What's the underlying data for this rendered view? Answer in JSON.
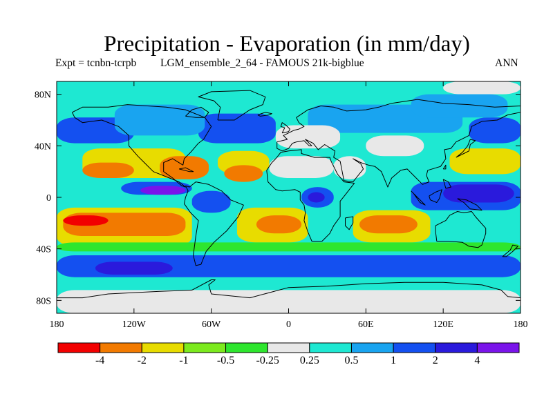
{
  "title": "Precipitation - Evaporation (in mm/day)",
  "experiment_label": "Expt = tcnbn-tcrpb",
  "experiment_name": "LGM_ensemble_2_64 - FAMOUS 21k-bigblue",
  "season": "ANN",
  "map": {
    "lon_range": [
      -180,
      180
    ],
    "lat_range": [
      -90,
      90
    ],
    "lat_ticks": [
      {
        "value": 80,
        "label": "80N"
      },
      {
        "value": 40,
        "label": "40N"
      },
      {
        "value": 0,
        "label": "0"
      },
      {
        "value": -40,
        "label": "40S"
      },
      {
        "value": -80,
        "label": "80S"
      }
    ],
    "lon_ticks": [
      {
        "value": -180,
        "label": "180"
      },
      {
        "value": -120,
        "label": "120W"
      },
      {
        "value": -60,
        "label": "60W"
      },
      {
        "value": 0,
        "label": "0"
      },
      {
        "value": 60,
        "label": "60E"
      },
      {
        "value": 120,
        "label": "120E"
      },
      {
        "value": 180,
        "label": "180"
      }
    ]
  },
  "colorbar": {
    "colors": [
      "#f20000",
      "#f27a00",
      "#e8dc00",
      "#7cea1e",
      "#2ee62e",
      "#e8e8e8",
      "#1ee8d2",
      "#19a4f0",
      "#1450f0",
      "#2a1adc",
      "#7a14ea"
    ],
    "labels": [
      "-4",
      "-2",
      "-1",
      "-0.5",
      "-0.25",
      "0.25",
      "0.5",
      "1",
      "2",
      "4"
    ]
  },
  "base_color": "#1ee8d2",
  "regions": [
    {
      "name": "arctic-white",
      "color": "#e8e8e8",
      "lon": [
        120,
        180
      ],
      "lat": [
        80,
        90
      ]
    },
    {
      "name": "north-atlantic-blue",
      "color": "#1450f0",
      "lon": [
        -70,
        -10
      ],
      "lat": [
        42,
        65
      ]
    },
    {
      "name": "north-pacific-blue",
      "color": "#1450f0",
      "lon": [
        -180,
        -120
      ],
      "lat": [
        42,
        62
      ]
    },
    {
      "name": "north-pacific-blue-west",
      "color": "#1450f0",
      "lon": [
        140,
        180
      ],
      "lat": [
        42,
        62
      ]
    },
    {
      "name": "canada-lightblue",
      "color": "#19a4f0",
      "lon": [
        -135,
        -65
      ],
      "lat": [
        48,
        72
      ]
    },
    {
      "name": "eurasia-lightblue",
      "color": "#19a4f0",
      "lon": [
        15,
        135
      ],
      "lat": [
        50,
        72
      ]
    },
    {
      "name": "siberia-lightblue",
      "color": "#19a4f0",
      "lon": [
        95,
        170
      ],
      "lat": [
        62,
        80
      ]
    },
    {
      "name": "sahara-white",
      "color": "#e8e8e8",
      "lon": [
        -15,
        35
      ],
      "lat": [
        15,
        32
      ]
    },
    {
      "name": "arabia-white",
      "color": "#e8e8e8",
      "lon": [
        35,
        60
      ],
      "lat": [
        14,
        32
      ]
    },
    {
      "name": "central-asia-white",
      "color": "#e8e8e8",
      "lon": [
        60,
        105
      ],
      "lat": [
        32,
        48
      ]
    },
    {
      "name": "europe-white",
      "color": "#e8e8e8",
      "lon": [
        -10,
        40
      ],
      "lat": [
        38,
        56
      ]
    },
    {
      "name": "na-band-yellow",
      "color": "#e8dc00",
      "lon": [
        -160,
        -80
      ],
      "lat": [
        15,
        38
      ]
    },
    {
      "name": "atlantic-band-yellow",
      "color": "#e8dc00",
      "lon": [
        -55,
        -15
      ],
      "lat": [
        18,
        36
      ]
    },
    {
      "name": "wpac-band-yellow",
      "color": "#e8dc00",
      "lon": [
        125,
        180
      ],
      "lat": [
        18,
        38
      ]
    },
    {
      "name": "mexico-orange",
      "color": "#f27a00",
      "lon": [
        -100,
        -62
      ],
      "lat": [
        14,
        32
      ]
    },
    {
      "name": "atlantic-trade-orange",
      "color": "#f27a00",
      "lon": [
        -50,
        -20
      ],
      "lat": [
        12,
        25
      ]
    },
    {
      "name": "npac-trade-orange",
      "color": "#f27a00",
      "lon": [
        -160,
        -120
      ],
      "lat": [
        15,
        27
      ]
    },
    {
      "name": "itcz-blue-east",
      "color": "#1450f0",
      "lon": [
        -130,
        -75
      ],
      "lat": [
        2,
        12
      ]
    },
    {
      "name": "itcz-purple",
      "color": "#7a14ea",
      "lon": [
        -115,
        -80
      ],
      "lat": [
        2,
        9
      ]
    },
    {
      "name": "africa-blue",
      "color": "#1450f0",
      "lon": [
        10,
        35
      ],
      "lat": [
        -8,
        8
      ]
    },
    {
      "name": "congo-purple",
      "color": "#2a1adc",
      "lon": [
        15,
        28
      ],
      "lat": [
        -4,
        4
      ]
    },
    {
      "name": "maritime-blue",
      "color": "#1450f0",
      "lon": [
        95,
        180
      ],
      "lat": [
        -10,
        12
      ]
    },
    {
      "name": "warm-pool-purple",
      "color": "#2a1adc",
      "lon": [
        120,
        175
      ],
      "lat": [
        -4,
        10
      ]
    },
    {
      "name": "amazon-blue",
      "color": "#1450f0",
      "lon": [
        -75,
        -45
      ],
      "lat": [
        -12,
        5
      ]
    },
    {
      "name": "se-pacific-yellow",
      "color": "#e8dc00",
      "lon": [
        -180,
        -75
      ],
      "lat": [
        -38,
        -8
      ]
    },
    {
      "name": "se-pacific-orange",
      "color": "#f27a00",
      "lon": [
        -175,
        -80
      ],
      "lat": [
        -30,
        -12
      ]
    },
    {
      "name": "se-pacific-red",
      "color": "#f20000",
      "lon": [
        -175,
        -140
      ],
      "lat": [
        -22,
        -14
      ]
    },
    {
      "name": "s-atlantic-yellow",
      "color": "#e8dc00",
      "lon": [
        -40,
        15
      ],
      "lat": [
        -35,
        -8
      ]
    },
    {
      "name": "s-atlantic-orange",
      "color": "#f27a00",
      "lon": [
        -25,
        10
      ],
      "lat": [
        -28,
        -14
      ]
    },
    {
      "name": "s-indian-yellow",
      "color": "#e8dc00",
      "lon": [
        50,
        110
      ],
      "lat": [
        -35,
        -10
      ]
    },
    {
      "name": "s-indian-orange",
      "color": "#f27a00",
      "lon": [
        55,
        100
      ],
      "lat": [
        -28,
        -14
      ]
    },
    {
      "name": "s-band-green",
      "color": "#2ee62e",
      "lon": [
        -180,
        180
      ],
      "lat": [
        -42,
        -35
      ]
    },
    {
      "name": "southern-ocean-blue",
      "color": "#1450f0",
      "lon": [
        -180,
        180
      ],
      "lat": [
        -62,
        -45
      ]
    },
    {
      "name": "southern-ocean-purple",
      "color": "#2a1adc",
      "lon": [
        -150,
        -90
      ],
      "lat": [
        -60,
        -50
      ]
    },
    {
      "name": "antarctica-white",
      "color": "#e8e8e8",
      "lon": [
        -180,
        180
      ],
      "lat": [
        -90,
        -72
      ]
    }
  ],
  "coastlines": [
    [
      [
        -168,
        66
      ],
      [
        -160,
        70
      ],
      [
        -140,
        70
      ],
      [
        -125,
        72
      ],
      [
        -95,
        70
      ],
      [
        -80,
        68
      ],
      [
        -65,
        62
      ],
      [
        -60,
        55
      ],
      [
        -66,
        45
      ],
      [
        -70,
        42
      ],
      [
        -76,
        35
      ],
      [
        -81,
        30
      ],
      [
        -82,
        25
      ],
      [
        -90,
        30
      ],
      [
        -97,
        27
      ],
      [
        -97,
        20
      ],
      [
        -90,
        15
      ],
      [
        -83,
        9
      ],
      [
        -80,
        8
      ],
      [
        -85,
        12
      ],
      [
        -95,
        16
      ],
      [
        -105,
        20
      ],
      [
        -112,
        27
      ],
      [
        -117,
        32
      ],
      [
        -124,
        40
      ],
      [
        -124,
        48
      ],
      [
        -132,
        55
      ],
      [
        -145,
        60
      ],
      [
        -160,
        58
      ],
      [
        -166,
        62
      ],
      [
        -168,
        66
      ]
    ],
    [
      [
        -80,
        9
      ],
      [
        -77,
        8
      ],
      [
        -72,
        12
      ],
      [
        -62,
        10
      ],
      [
        -52,
        5
      ],
      [
        -45,
        -2
      ],
      [
        -35,
        -6
      ],
      [
        -39,
        -15
      ],
      [
        -48,
        -26
      ],
      [
        -58,
        -35
      ],
      [
        -64,
        -42
      ],
      [
        -68,
        -52
      ],
      [
        -72,
        -53
      ],
      [
        -74,
        -45
      ],
      [
        -72,
        -30
      ],
      [
        -70,
        -18
      ],
      [
        -76,
        -12
      ],
      [
        -81,
        -5
      ],
      [
        -80,
        0
      ],
      [
        -78,
        5
      ],
      [
        -80,
        9
      ]
    ],
    [
      [
        -9,
        43
      ],
      [
        -9,
        38
      ],
      [
        -5,
        36
      ],
      [
        0,
        38
      ],
      [
        3,
        42
      ],
      [
        6,
        43
      ],
      [
        12,
        44
      ],
      [
        16,
        40
      ],
      [
        18,
        40
      ],
      [
        13,
        45
      ],
      [
        19,
        42
      ],
      [
        23,
        37
      ],
      [
        28,
        41
      ],
      [
        36,
        36
      ],
      [
        35,
        31
      ],
      [
        40,
        28
      ],
      [
        43,
        13
      ],
      [
        50,
        12
      ],
      [
        58,
        22
      ],
      [
        56,
        26
      ],
      [
        50,
        30
      ],
      [
        56,
        27
      ],
      [
        62,
        25
      ],
      [
        67,
        24
      ],
      [
        72,
        20
      ],
      [
        77,
        8
      ],
      [
        80,
        15
      ],
      [
        87,
        21
      ],
      [
        92,
        22
      ],
      [
        98,
        16
      ],
      [
        104,
        10
      ],
      [
        109,
        12
      ],
      [
        107,
        17
      ],
      [
        108,
        21
      ],
      [
        118,
        24
      ],
      [
        122,
        30
      ],
      [
        121,
        37
      ],
      [
        126,
        38
      ],
      [
        130,
        43
      ],
      [
        140,
        48
      ],
      [
        142,
        55
      ],
      [
        150,
        59
      ],
      [
        162,
        60
      ],
      [
        170,
        64
      ],
      [
        180,
        66
      ],
      [
        180,
        71
      ],
      [
        160,
        70
      ],
      [
        140,
        72
      ],
      [
        120,
        73
      ],
      [
        100,
        76
      ],
      [
        80,
        73
      ],
      [
        70,
        70
      ],
      [
        60,
        68
      ],
      [
        45,
        67
      ],
      [
        35,
        70
      ],
      [
        25,
        71
      ],
      [
        15,
        68
      ],
      [
        6,
        62
      ],
      [
        8,
        58
      ],
      [
        12,
        55
      ],
      [
        8,
        53
      ],
      [
        4,
        52
      ],
      [
        0,
        50
      ],
      [
        -4,
        48
      ],
      [
        -1,
        45
      ],
      [
        -9,
        43
      ]
    ],
    [
      [
        -17,
        21
      ],
      [
        -16,
        12
      ],
      [
        -10,
        6
      ],
      [
        -5,
        5
      ],
      [
        5,
        6
      ],
      [
        9,
        4
      ],
      [
        9,
        -2
      ],
      [
        12,
        -6
      ],
      [
        13,
        -12
      ],
      [
        12,
        -18
      ],
      [
        15,
        -27
      ],
      [
        18,
        -34
      ],
      [
        26,
        -34
      ],
      [
        32,
        -28
      ],
      [
        35,
        -22
      ],
      [
        40,
        -15
      ],
      [
        40,
        -10
      ],
      [
        40,
        -3
      ],
      [
        44,
        2
      ],
      [
        51,
        11
      ],
      [
        43,
        12
      ],
      [
        38,
        18
      ],
      [
        33,
        28
      ],
      [
        32,
        31
      ],
      [
        20,
        31
      ],
      [
        10,
        34
      ],
      [
        10,
        37
      ],
      [
        0,
        36
      ],
      [
        -6,
        35
      ],
      [
        -10,
        30
      ],
      [
        -13,
        27
      ],
      [
        -17,
        21
      ]
    ],
    [
      [
        114,
        -22
      ],
      [
        114,
        -26
      ],
      [
        115,
        -34
      ],
      [
        124,
        -34
      ],
      [
        135,
        -35
      ],
      [
        140,
        -38
      ],
      [
        147,
        -39
      ],
      [
        150,
        -37
      ],
      [
        153,
        -28
      ],
      [
        153,
        -24
      ],
      [
        145,
        -15
      ],
      [
        142,
        -11
      ],
      [
        136,
        -12
      ],
      [
        131,
        -11
      ],
      [
        125,
        -14
      ],
      [
        122,
        -18
      ],
      [
        114,
        -22
      ]
    ],
    [
      [
        -180,
        -78
      ],
      [
        -160,
        -78
      ],
      [
        -140,
        -75
      ],
      [
        -100,
        -73
      ],
      [
        -75,
        -72
      ],
      [
        -60,
        -64
      ],
      [
        -57,
        -64
      ],
      [
        -62,
        -68
      ],
      [
        -60,
        -75
      ],
      [
        -30,
        -78
      ],
      [
        0,
        -70
      ],
      [
        30,
        -69
      ],
      [
        60,
        -67
      ],
      [
        90,
        -66
      ],
      [
        120,
        -66
      ],
      [
        150,
        -68
      ],
      [
        165,
        -72
      ],
      [
        170,
        -77
      ],
      [
        180,
        -78
      ]
    ],
    [
      [
        -55,
        60
      ],
      [
        -42,
        60
      ],
      [
        -30,
        68
      ],
      [
        -20,
        72
      ],
      [
        -18,
        78
      ],
      [
        -30,
        83
      ],
      [
        -60,
        82
      ],
      [
        -70,
        78
      ],
      [
        -58,
        75
      ],
      [
        -53,
        70
      ],
      [
        -55,
        60
      ]
    ],
    [
      [
        -80,
        63
      ],
      [
        -75,
        68
      ],
      [
        -68,
        70
      ],
      [
        -62,
        66
      ],
      [
        -65,
        62
      ],
      [
        -72,
        62
      ],
      [
        -80,
        63
      ]
    ],
    [
      [
        -24,
        64
      ],
      [
        -18,
        66
      ],
      [
        -13,
        65
      ],
      [
        -15,
        64
      ],
      [
        -22,
        63
      ],
      [
        -24,
        64
      ]
    ],
    [
      [
        -5,
        50
      ],
      [
        0,
        51
      ],
      [
        1,
        53
      ],
      [
        -2,
        56
      ],
      [
        -5,
        58
      ],
      [
        -6,
        55
      ],
      [
        -3,
        54
      ],
      [
        -5,
        50
      ]
    ],
    [
      [
        130,
        31
      ],
      [
        136,
        34
      ],
      [
        140,
        36
      ],
      [
        141,
        41
      ],
      [
        145,
        44
      ],
      [
        141,
        45
      ],
      [
        139,
        40
      ],
      [
        135,
        35
      ],
      [
        130,
        31
      ]
    ],
    [
      [
        95,
        5
      ],
      [
        100,
        0
      ],
      [
        106,
        -6
      ],
      [
        102,
        -4
      ],
      [
        97,
        3
      ],
      [
        95,
        5
      ]
    ],
    [
      [
        109,
        1
      ],
      [
        114,
        4
      ],
      [
        119,
        6
      ],
      [
        117,
        -1
      ],
      [
        115,
        -4
      ],
      [
        110,
        -2
      ],
      [
        109,
        1
      ]
    ],
    [
      [
        131,
        -1
      ],
      [
        138,
        -2
      ],
      [
        146,
        -6
      ],
      [
        150,
        -10
      ],
      [
        141,
        -9
      ],
      [
        136,
        -4
      ],
      [
        131,
        -1
      ]
    ],
    [
      [
        44,
        -16
      ],
      [
        50,
        -15
      ],
      [
        50,
        -20
      ],
      [
        47,
        -25
      ],
      [
        44,
        -22
      ],
      [
        44,
        -16
      ]
    ],
    [
      [
        166,
        -46
      ],
      [
        172,
        -41
      ],
      [
        174,
        -37
      ],
      [
        178,
        -38
      ],
      [
        174,
        -42
      ],
      [
        169,
        -46
      ],
      [
        166,
        -46
      ]
    ],
    [
      [
        120,
        22
      ],
      [
        122,
        25
      ],
      [
        122,
        22
      ],
      [
        120,
        22
      ]
    ],
    [
      [
        120,
        14
      ],
      [
        124,
        12
      ],
      [
        126,
        8
      ],
      [
        122,
        7
      ],
      [
        120,
        14
      ]
    ],
    [
      [
        -85,
        22
      ],
      [
        -77,
        20
      ],
      [
        -74,
        20
      ],
      [
        -80,
        23
      ],
      [
        -85,
        22
      ]
    ]
  ]
}
